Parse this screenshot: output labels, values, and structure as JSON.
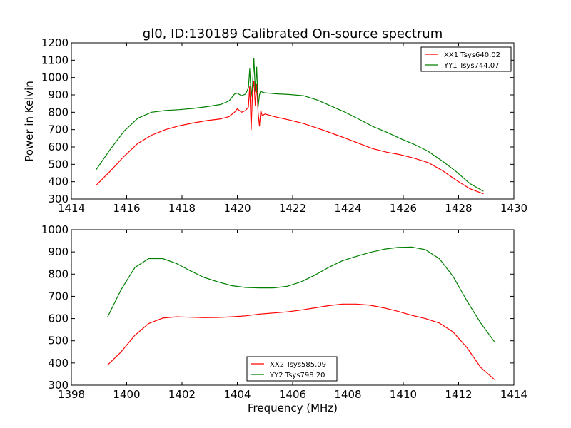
{
  "chart_data": [
    {
      "type": "line",
      "title": "gl0, ID:130189 Calibrated On-source spectrum",
      "xlabel": "",
      "ylabel": "Power in Kelvin",
      "xlim": [
        1414,
        1430
      ],
      "ylim": [
        300,
        1200
      ],
      "xticks": [
        "1414",
        "1416",
        "1418",
        "1420",
        "1422",
        "1424",
        "1426",
        "1428",
        "1430"
      ],
      "yticks": [
        "300",
        "400",
        "500",
        "600",
        "700",
        "800",
        "900",
        "1000",
        "1100",
        "1200"
      ],
      "legend": "top-right",
      "grid": false,
      "series": [
        {
          "name": "XX1 Tsys640.02",
          "color": "#ff0000",
          "x": [
            1414.9,
            1415.4,
            1415.9,
            1416.4,
            1416.9,
            1417.4,
            1417.9,
            1418.4,
            1418.9,
            1419.4,
            1419.7,
            1419.9,
            1420.0,
            1420.15,
            1420.3,
            1420.4,
            1420.45,
            1420.5,
            1420.55,
            1420.6,
            1420.65,
            1420.7,
            1420.75,
            1420.8,
            1420.85,
            1420.9,
            1421.0,
            1421.4,
            1421.9,
            1422.4,
            1422.9,
            1423.4,
            1423.9,
            1424.4,
            1424.9,
            1425.4,
            1425.9,
            1426.4,
            1426.9,
            1427.4,
            1427.9,
            1428.4,
            1428.9
          ],
          "y": [
            380,
            460,
            545,
            620,
            668,
            700,
            722,
            738,
            752,
            762,
            775,
            800,
            820,
            800,
            810,
            830,
            950,
            700,
            920,
            980,
            840,
            960,
            800,
            720,
            810,
            780,
            790,
            772,
            755,
            735,
            708,
            680,
            651,
            620,
            590,
            570,
            555,
            535,
            510,
            465,
            410,
            360,
            330
          ]
        },
        {
          "name": "YY1 Tsys744.07",
          "color": "#008000",
          "x": [
            1414.9,
            1415.4,
            1415.9,
            1416.4,
            1416.9,
            1417.4,
            1417.9,
            1418.4,
            1418.9,
            1419.4,
            1419.7,
            1419.9,
            1420.0,
            1420.15,
            1420.3,
            1420.4,
            1420.45,
            1420.5,
            1420.55,
            1420.6,
            1420.65,
            1420.7,
            1420.75,
            1420.8,
            1420.85,
            1420.9,
            1421.0,
            1421.4,
            1421.9,
            1422.4,
            1422.9,
            1423.4,
            1423.9,
            1424.4,
            1424.9,
            1425.4,
            1425.9,
            1426.4,
            1426.9,
            1427.4,
            1427.9,
            1428.4,
            1428.9
          ],
          "y": [
            470,
            585,
            690,
            765,
            800,
            810,
            815,
            822,
            832,
            845,
            865,
            905,
            910,
            895,
            905,
            940,
            1050,
            890,
            960,
            1110,
            920,
            1060,
            830,
            900,
            925,
            915,
            912,
            906,
            902,
            895,
            870,
            835,
            800,
            760,
            718,
            685,
            648,
            615,
            575,
            520,
            460,
            390,
            345
          ]
        }
      ]
    },
    {
      "type": "line",
      "title": "",
      "xlabel": "Frequency (MHz)",
      "ylabel": "",
      "xlim": [
        1398,
        1414
      ],
      "ylim": [
        300,
        1000
      ],
      "xticks": [
        "1398",
        "1400",
        "1402",
        "1404",
        "1406",
        "1408",
        "1410",
        "1412",
        "1414"
      ],
      "yticks": [
        "300",
        "400",
        "500",
        "600",
        "700",
        "800",
        "900",
        "1000"
      ],
      "legend": "bottom-center",
      "grid": false,
      "series": [
        {
          "name": "XX2 Tsys585.09",
          "color": "#ff0000",
          "x": [
            1399.3,
            1399.8,
            1400.3,
            1400.8,
            1401.3,
            1401.8,
            1402.3,
            1402.8,
            1403.3,
            1403.8,
            1404.3,
            1404.8,
            1405.3,
            1405.8,
            1406.3,
            1406.8,
            1407.3,
            1407.8,
            1408.3,
            1408.8,
            1409.3,
            1409.8,
            1410.3,
            1410.8,
            1411.3,
            1411.8,
            1412.3,
            1412.8,
            1413.3
          ],
          "y": [
            390,
            450,
            525,
            578,
            602,
            608,
            606,
            604,
            605,
            608,
            612,
            620,
            625,
            630,
            638,
            648,
            658,
            665,
            665,
            660,
            648,
            633,
            615,
            600,
            580,
            540,
            470,
            380,
            325
          ]
        },
        {
          "name": "YY2 Tsys798.20",
          "color": "#008000",
          "x": [
            1399.3,
            1399.8,
            1400.3,
            1400.8,
            1401.3,
            1401.8,
            1402.3,
            1402.8,
            1403.3,
            1403.8,
            1404.3,
            1404.8,
            1405.3,
            1405.8,
            1406.3,
            1406.8,
            1407.3,
            1407.8,
            1408.3,
            1408.8,
            1409.3,
            1409.8,
            1410.3,
            1410.8,
            1411.3,
            1411.8,
            1412.3,
            1412.8,
            1413.3
          ],
          "y": [
            605,
            730,
            830,
            870,
            870,
            848,
            815,
            785,
            765,
            748,
            740,
            738,
            738,
            745,
            765,
            795,
            830,
            860,
            880,
            898,
            912,
            920,
            922,
            910,
            870,
            790,
            680,
            580,
            495
          ]
        }
      ]
    }
  ]
}
